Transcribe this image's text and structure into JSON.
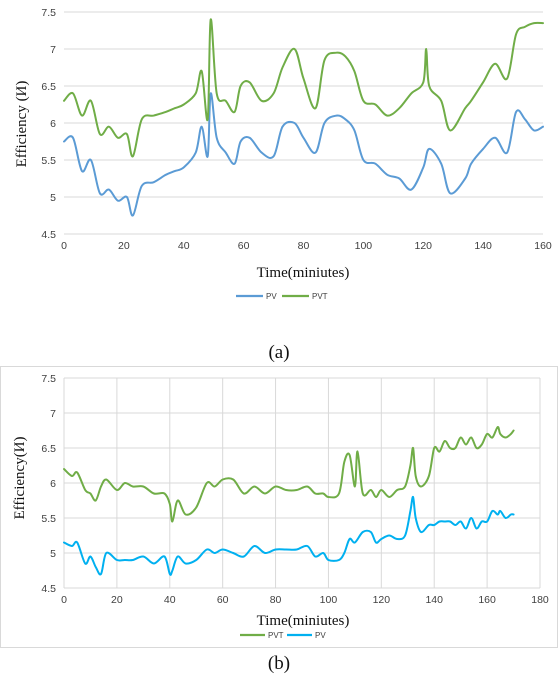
{
  "captions": {
    "a": "(a)",
    "b": "(b)"
  },
  "colors": {
    "pv_a": "#5b9bd5",
    "pvt_a": "#70ad47",
    "pv_b": "#00b0f0",
    "pvt_b": "#70ad47",
    "grid": "#d9d9d9"
  },
  "chart_data": [
    {
      "type": "line",
      "ylabel": "Efficiency (И)",
      "xlabel": "Time(miniutes)",
      "xlim": [
        0,
        160
      ],
      "ylim": [
        4.5,
        7.5
      ],
      "xticks": [
        0,
        20,
        40,
        60,
        80,
        100,
        120,
        140,
        160
      ],
      "yticks": [
        4.5,
        5,
        5.5,
        6,
        6.5,
        7,
        7.5
      ],
      "grid": "horizontal",
      "legend_position": "bottom",
      "legend": [
        "PV",
        "PVT"
      ],
      "series": [
        {
          "name": "PV",
          "color": "#5b9bd5",
          "x": [
            0,
            3,
            6,
            9,
            12,
            15,
            18,
            21,
            23,
            26,
            30,
            34,
            37,
            40,
            44,
            46,
            48,
            49,
            51,
            54,
            57,
            59,
            62,
            66,
            70,
            73,
            77,
            80,
            84,
            87,
            91,
            94,
            97,
            100,
            104,
            108,
            112,
            116,
            120,
            122,
            126,
            129,
            134,
            136,
            140,
            144,
            148,
            151,
            154,
            157,
            160
          ],
          "y": [
            5.75,
            5.8,
            5.35,
            5.5,
            5.05,
            5.1,
            4.95,
            5.0,
            4.75,
            5.15,
            5.2,
            5.3,
            5.35,
            5.4,
            5.6,
            5.95,
            5.55,
            6.4,
            5.8,
            5.6,
            5.45,
            5.75,
            5.8,
            5.6,
            5.55,
            5.95,
            6.0,
            5.8,
            5.6,
            6.0,
            6.1,
            6.05,
            5.9,
            5.5,
            5.45,
            5.3,
            5.25,
            5.1,
            5.4,
            5.65,
            5.45,
            5.05,
            5.25,
            5.45,
            5.65,
            5.8,
            5.6,
            6.15,
            6.05,
            5.9,
            5.95
          ]
        },
        {
          "name": "PVT",
          "color": "#70ad47",
          "x": [
            0,
            3,
            6,
            9,
            12,
            15,
            18,
            21,
            23,
            26,
            30,
            34,
            37,
            40,
            44,
            46,
            48,
            49,
            51,
            54,
            57,
            59,
            62,
            66,
            70,
            73,
            77,
            80,
            84,
            87,
            91,
            94,
            97,
            100,
            104,
            108,
            112,
            116,
            120,
            121,
            122,
            126,
            129,
            134,
            136,
            140,
            144,
            148,
            151,
            154,
            157,
            160
          ],
          "y": [
            6.3,
            6.4,
            6.1,
            6.3,
            5.85,
            5.95,
            5.8,
            5.85,
            5.55,
            6.05,
            6.1,
            6.15,
            6.2,
            6.25,
            6.4,
            6.7,
            6.05,
            7.4,
            6.4,
            6.3,
            6.15,
            6.5,
            6.55,
            6.3,
            6.4,
            6.75,
            7.0,
            6.6,
            6.2,
            6.85,
            6.95,
            6.9,
            6.7,
            6.3,
            6.25,
            6.1,
            6.2,
            6.4,
            6.55,
            7.0,
            6.5,
            6.3,
            5.9,
            6.2,
            6.3,
            6.55,
            6.8,
            6.6,
            7.2,
            7.3,
            7.35,
            7.35
          ]
        }
      ]
    },
    {
      "type": "line",
      "ylabel": "Efficiency(И)",
      "xlabel": "Time(miniutes)",
      "xlim": [
        0,
        180
      ],
      "ylim": [
        4.5,
        7.5
      ],
      "xticks": [
        0,
        20,
        40,
        60,
        80,
        100,
        120,
        140,
        160,
        180
      ],
      "yticks": [
        4.5,
        5,
        5.5,
        6,
        6.5,
        7,
        7.5
      ],
      "grid": "both",
      "legend_position": "bottom",
      "legend": [
        "PVT",
        "PV"
      ],
      "series": [
        {
          "name": "PVT",
          "color": "#70ad47",
          "x": [
            0,
            3,
            5,
            8,
            10,
            12,
            14,
            16,
            20,
            23,
            26,
            30,
            34,
            38,
            40,
            41,
            43,
            46,
            50,
            54,
            57,
            60,
            64,
            68,
            72,
            76,
            80,
            84,
            88,
            92,
            95,
            98,
            100,
            104,
            106,
            108,
            110,
            111,
            113,
            116,
            118,
            120,
            123,
            126,
            129,
            131,
            132,
            133,
            135,
            138,
            140,
            142,
            144,
            146,
            148,
            150,
            152,
            154,
            156,
            158,
            160,
            162,
            164,
            165,
            167,
            169,
            170
          ],
          "y": [
            6.2,
            6.1,
            6.15,
            5.9,
            5.85,
            5.75,
            5.95,
            6.05,
            5.9,
            6.0,
            5.95,
            5.95,
            5.85,
            5.85,
            5.7,
            5.45,
            5.75,
            5.55,
            5.65,
            6.0,
            5.95,
            6.05,
            6.05,
            5.85,
            5.95,
            5.85,
            5.95,
            5.9,
            5.9,
            5.95,
            5.85,
            5.85,
            5.8,
            5.85,
            6.3,
            6.4,
            5.95,
            6.45,
            5.85,
            5.9,
            5.8,
            5.9,
            5.8,
            5.9,
            5.95,
            6.25,
            6.5,
            6.1,
            5.95,
            6.1,
            6.5,
            6.45,
            6.6,
            6.5,
            6.5,
            6.65,
            6.55,
            6.65,
            6.5,
            6.55,
            6.7,
            6.65,
            6.8,
            6.7,
            6.65,
            6.7,
            6.75
          ]
        },
        {
          "name": "PV",
          "color": "#00b0f0",
          "x": [
            0,
            3,
            5,
            8,
            10,
            12,
            14,
            16,
            20,
            23,
            26,
            30,
            34,
            38,
            40,
            41,
            43,
            46,
            50,
            54,
            57,
            60,
            64,
            68,
            72,
            76,
            80,
            84,
            88,
            92,
            95,
            98,
            100,
            104,
            106,
            108,
            110,
            113,
            116,
            118,
            120,
            123,
            126,
            129,
            131,
            132,
            133,
            135,
            138,
            140,
            142,
            144,
            146,
            148,
            150,
            152,
            154,
            156,
            158,
            160,
            162,
            164,
            165,
            167,
            169,
            170
          ],
          "y": [
            5.15,
            5.1,
            5.15,
            4.85,
            4.95,
            4.8,
            4.7,
            5.0,
            4.9,
            4.9,
            4.9,
            4.95,
            4.85,
            4.95,
            4.7,
            4.75,
            4.95,
            4.85,
            4.9,
            5.05,
            5.0,
            5.05,
            5.0,
            4.95,
            5.1,
            5.0,
            5.05,
            5.05,
            5.05,
            5.1,
            4.95,
            5.0,
            4.9,
            4.9,
            5.0,
            5.2,
            5.15,
            5.3,
            5.3,
            5.15,
            5.2,
            5.25,
            5.2,
            5.25,
            5.6,
            5.8,
            5.5,
            5.3,
            5.4,
            5.4,
            5.45,
            5.45,
            5.45,
            5.4,
            5.45,
            5.35,
            5.5,
            5.35,
            5.45,
            5.45,
            5.6,
            5.55,
            5.6,
            5.5,
            5.55,
            5.55
          ]
        }
      ]
    }
  ]
}
